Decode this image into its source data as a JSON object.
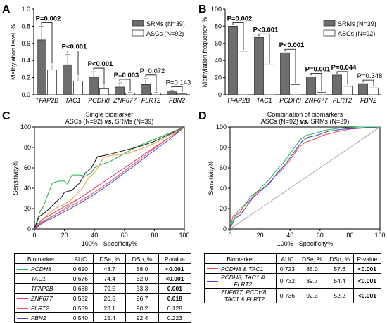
{
  "panels": {
    "A": "A",
    "B": "B",
    "C": "C",
    "D": "D"
  },
  "colors": {
    "srm": "#6e6e6e",
    "asc": "#ffffff"
  },
  "chart_data": [
    {
      "id": "A",
      "type": "bar",
      "ylabel": "Methylation level, %",
      "ylim": [
        0,
        1.0
      ],
      "yticks": [
        "0.0",
        "0.2",
        "0.4",
        "0.6",
        "0.8",
        "1.0"
      ],
      "categories": [
        "TFAP2B",
        "TAC1",
        "PCDH8",
        "ZNF677",
        "FLRT2",
        "FBN2"
      ],
      "series": [
        {
          "name": "SRMs (N=39)",
          "values": [
            0.64,
            0.35,
            0.2,
            0.09,
            0.12,
            0.035
          ],
          "err": [
            0.16,
            0.12,
            0.07,
            0.05,
            0.07,
            0.02
          ]
        },
        {
          "name": "ASCs (N=92)",
          "values": [
            0.29,
            0.16,
            0.07,
            0.02,
            0.02,
            0.01
          ],
          "err": [
            0.06,
            0.05,
            0.03,
            0.01,
            0.01,
            0.005
          ]
        }
      ],
      "pvalues": [
        {
          "label": "P=0.002",
          "bold": true
        },
        {
          "label": "P<0.001",
          "bold": true
        },
        {
          "label": "P<0.001",
          "bold": true
        },
        {
          "label": "P=0.003",
          "bold": true
        },
        {
          "label": "P=0.072",
          "bold": false
        },
        {
          "label": "P=0.143",
          "bold": false
        }
      ],
      "legend": "top-right"
    },
    {
      "id": "B",
      "type": "bar",
      "ylabel": "Methylation frequency, %",
      "ylim": [
        0,
        100
      ],
      "yticks": [
        "0",
        "20",
        "40",
        "60",
        "80",
        "100"
      ],
      "categories": [
        "TFAP2B",
        "TAC1",
        "PCDH8",
        "ZNF677",
        "FLRT2",
        "FBN2"
      ],
      "series": [
        {
          "name": "SRMs (N=39)",
          "values": [
            80,
            67,
            49,
            21,
            23,
            13
          ]
        },
        {
          "name": "ASCs (N=92)",
          "values": [
            51,
            35,
            12,
            3,
            10,
            8
          ]
        }
      ],
      "pvalues": [
        {
          "label": "P=0.002",
          "bold": true
        },
        {
          "label": "P<0.001",
          "bold": true
        },
        {
          "label": "P<0.001",
          "bold": true
        },
        {
          "label": "P=0.001",
          "bold": true
        },
        {
          "label": "P=0.044",
          "bold": true
        },
        {
          "label": "P=0.348",
          "bold": false
        }
      ],
      "legend": "top-right"
    },
    {
      "id": "C",
      "type": "line",
      "title": "Single biomarker",
      "subtitle": "ASCs (N=92) vs. SRMs (N=39)",
      "xlabel": "100% - Specificity%",
      "ylabel": "Sensitivity%",
      "xlim": [
        0,
        100
      ],
      "ylim": [
        0,
        100
      ],
      "ticks": [
        "0",
        "20",
        "40",
        "60",
        "80",
        "100"
      ],
      "series": [
        {
          "name": "PCDH8",
          "color": "#22b24c",
          "points": [
            [
              0,
              0
            ],
            [
              2,
              10
            ],
            [
              4,
              18
            ],
            [
              6,
              22
            ],
            [
              8,
              30
            ],
            [
              10,
              38
            ],
            [
              12,
              45
            ],
            [
              16,
              47
            ],
            [
              20,
              47
            ],
            [
              22,
              44
            ],
            [
              25,
              53
            ],
            [
              30,
              53
            ],
            [
              34,
              52
            ],
            [
              38,
              55
            ],
            [
              40,
              60
            ],
            [
              44,
              63
            ],
            [
              50,
              66
            ],
            [
              60,
              74
            ],
            [
              70,
              82
            ],
            [
              80,
              88
            ],
            [
              90,
              94
            ],
            [
              100,
              100
            ]
          ]
        },
        {
          "name": "TAC1",
          "color": "#111111",
          "points": [
            [
              0,
              0
            ],
            [
              3,
              12
            ],
            [
              6,
              15
            ],
            [
              10,
              20
            ],
            [
              14,
              26
            ],
            [
              18,
              31
            ],
            [
              20,
              36
            ],
            [
              25,
              38
            ],
            [
              30,
              45
            ],
            [
              34,
              55
            ],
            [
              38,
              60
            ],
            [
              42,
              71
            ],
            [
              46,
              72
            ],
            [
              52,
              74
            ],
            [
              60,
              77
            ],
            [
              70,
              81
            ],
            [
              80,
              86
            ],
            [
              90,
              93
            ],
            [
              100,
              100
            ]
          ]
        },
        {
          "name": "TFAP2B",
          "color": "#f0a030",
          "points": [
            [
              0,
              0
            ],
            [
              4,
              7
            ],
            [
              8,
              13
            ],
            [
              12,
              18
            ],
            [
              16,
              22
            ],
            [
              20,
              24
            ],
            [
              24,
              28
            ],
            [
              28,
              34
            ],
            [
              32,
              40
            ],
            [
              36,
              50
            ],
            [
              40,
              55
            ],
            [
              43,
              62
            ],
            [
              46,
              70
            ],
            [
              50,
              72
            ],
            [
              56,
              73
            ],
            [
              62,
              74
            ],
            [
              70,
              78
            ],
            [
              80,
              84
            ],
            [
              90,
              92
            ],
            [
              100,
              100
            ]
          ]
        },
        {
          "name": "ZNF677",
          "color": "#ee3377",
          "points": [
            [
              0,
              0
            ],
            [
              2,
              5
            ],
            [
              6,
              10
            ],
            [
              12,
              15
            ],
            [
              20,
              22
            ],
            [
              30,
              30
            ],
            [
              40,
              40
            ],
            [
              50,
              50
            ],
            [
              60,
              60
            ],
            [
              70,
              70
            ],
            [
              80,
              80
            ],
            [
              90,
              90
            ],
            [
              100,
              100
            ]
          ]
        },
        {
          "name": "FLRT2",
          "color": "#e05050",
          "points": [
            [
              0,
              0
            ],
            [
              4,
              6
            ],
            [
              8,
              9
            ],
            [
              14,
              14
            ],
            [
              20,
              19
            ],
            [
              30,
              27
            ],
            [
              40,
              36
            ],
            [
              50,
              46
            ],
            [
              60,
              57
            ],
            [
              70,
              68
            ],
            [
              80,
              79
            ],
            [
              90,
              90
            ],
            [
              100,
              100
            ]
          ]
        },
        {
          "name": "FBN2",
          "color": "#4a4ad8",
          "points": [
            [
              0,
              0
            ],
            [
              5,
              6
            ],
            [
              10,
              9
            ],
            [
              20,
              17
            ],
            [
              30,
              25
            ],
            [
              40,
              34
            ],
            [
              50,
              44
            ],
            [
              60,
              55
            ],
            [
              70,
              66
            ],
            [
              80,
              77
            ],
            [
              90,
              88
            ],
            [
              100,
              100
            ]
          ]
        }
      ]
    },
    {
      "id": "D",
      "type": "line",
      "title": "Combination of biomarkers",
      "subtitle": "ASCs (N=92) vs. SRMs (N=39)",
      "xlabel": "100% - Specificity%",
      "ylabel": "Sensitivity%",
      "xlim": [
        0,
        100
      ],
      "ylim": [
        0,
        100
      ],
      "ticks": [
        "0",
        "20",
        "40",
        "60",
        "80",
        "100"
      ],
      "series": [
        {
          "name": "PCDH8 & TAC1",
          "color": "#ee4444",
          "points": [
            [
              0,
              0
            ],
            [
              2,
              13
            ],
            [
              6,
              15
            ],
            [
              9,
              22
            ],
            [
              13,
              28
            ],
            [
              18,
              36
            ],
            [
              22,
              40
            ],
            [
              26,
              44
            ],
            [
              30,
              52
            ],
            [
              34,
              57
            ],
            [
              38,
              64
            ],
            [
              42,
              72
            ],
            [
              46,
              80
            ],
            [
              50,
              85
            ],
            [
              56,
              88
            ],
            [
              62,
              92
            ],
            [
              70,
              95
            ],
            [
              80,
              98
            ],
            [
              90,
              99
            ],
            [
              100,
              100
            ]
          ]
        },
        {
          "name": "PCDH8, TAC1 & FLRT2",
          "color": "#4444cc",
          "points": [
            [
              0,
              0
            ],
            [
              3,
              10
            ],
            [
              7,
              14
            ],
            [
              11,
              22
            ],
            [
              15,
              30
            ],
            [
              20,
              37
            ],
            [
              24,
              42
            ],
            [
              28,
              48
            ],
            [
              32,
              56
            ],
            [
              36,
              62
            ],
            [
              40,
              70
            ],
            [
              44,
              78
            ],
            [
              48,
              86
            ],
            [
              52,
              90
            ],
            [
              58,
              92
            ],
            [
              66,
              96
            ],
            [
              76,
              98
            ],
            [
              88,
              99
            ],
            [
              100,
              100
            ]
          ]
        },
        {
          "name": "ZNF677, PCDH8, TAC1 & FLRT2",
          "color": "#22b24c",
          "points": [
            [
              0,
              0
            ],
            [
              2,
              8
            ],
            [
              5,
              17
            ],
            [
              10,
              24
            ],
            [
              14,
              32
            ],
            [
              19,
              38
            ],
            [
              23,
              44
            ],
            [
              27,
              50
            ],
            [
              31,
              58
            ],
            [
              35,
              64
            ],
            [
              39,
              72
            ],
            [
              43,
              80
            ],
            [
              47,
              88
            ],
            [
              51,
              92
            ],
            [
              57,
              94
            ],
            [
              64,
              97
            ],
            [
              74,
              99
            ],
            [
              86,
              100
            ],
            [
              100,
              100
            ]
          ]
        }
      ]
    }
  ],
  "tableC": {
    "headers": [
      "Biomarker",
      "AUC",
      "DSe, %",
      "DSp, %",
      "P-value"
    ],
    "rows": [
      {
        "name": "PCDH8",
        "auc": "0.690",
        "dse": "48.7",
        "dsp": "88.0",
        "p": "<0.001",
        "bold": true,
        "color": "#22b24c"
      },
      {
        "name": "TAC1",
        "auc": "0.676",
        "dse": "74.4",
        "dsp": "62.0",
        "p": "<0.001",
        "bold": true,
        "color": "#111111"
      },
      {
        "name": "TFAP2B",
        "auc": "0.668",
        "dse": "79.5",
        "dsp": "53.3",
        "p": "0.001",
        "bold": true,
        "color": "#f0a030"
      },
      {
        "name": "ZNF677",
        "auc": "0.582",
        "dse": "20.5",
        "dsp": "96.7",
        "p": "0.018",
        "bold": true,
        "color": "#ee3377"
      },
      {
        "name": "FLRT2",
        "auc": "0.559",
        "dse": "23.1",
        "dsp": "90.2",
        "p": "0.128",
        "bold": false,
        "color": "#e05050"
      },
      {
        "name": "FBN2",
        "auc": "0.540",
        "dse": "15.4",
        "dsp": "92.4",
        "p": "0.223",
        "bold": false,
        "color": "#4a4ad8"
      }
    ]
  },
  "tableD": {
    "headers": [
      "Biomarker",
      "AUC",
      "DSe, %",
      "DSp, %",
      "P-value"
    ],
    "rows": [
      {
        "lines": [
          "PCDH8 & TAC1"
        ],
        "auc": "0.723",
        "dse": "85.0",
        "dsp": "57.6",
        "p": "<0.001",
        "bold": true,
        "color": "#ee4444"
      },
      {
        "lines": [
          "PCDH8, TAC1 &",
          "FLRT2"
        ],
        "auc": "0.732",
        "dse": "89.7",
        "dsp": "54.4",
        "p": "<0.001",
        "bold": true,
        "color": "#4444cc"
      },
      {
        "lines": [
          "ZNF677, PCDH8,",
          "TAC1 & FLRT2"
        ],
        "auc": "0.736",
        "dse": "92.3",
        "dsp": "52.2",
        "p": "<0.001",
        "bold": true,
        "color": "#22b24c"
      }
    ]
  }
}
